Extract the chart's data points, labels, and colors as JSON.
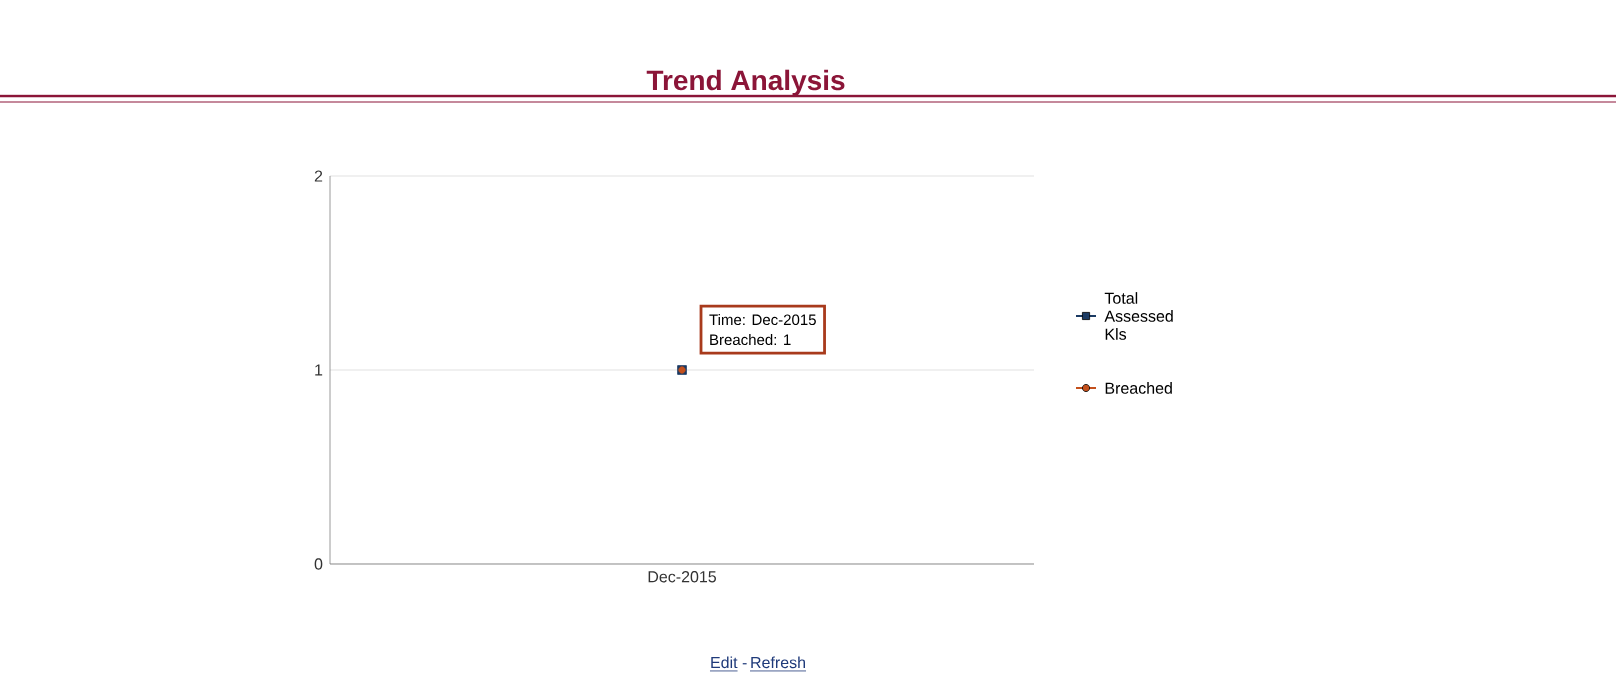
{
  "chart_data": {
    "type": "line",
    "title": "Trend Analysis",
    "categories": [
      "Dec-2015"
    ],
    "series": [
      {
        "name": "Total Assessed Kls",
        "color": "#1b3a63",
        "values": [
          1
        ],
        "marker": "square"
      },
      {
        "name": "Breached",
        "color": "#c4501c",
        "values": [
          1
        ],
        "marker": "circle"
      }
    ],
    "ylim": [
      0,
      2
    ],
    "yticks": [
      0,
      1,
      2
    ],
    "grid": "y",
    "legend": "right",
    "annotations": [
      "Time: Dec-2015",
      "Breached: 1",
      "Edit",
      "-",
      "Refresh"
    ]
  }
}
